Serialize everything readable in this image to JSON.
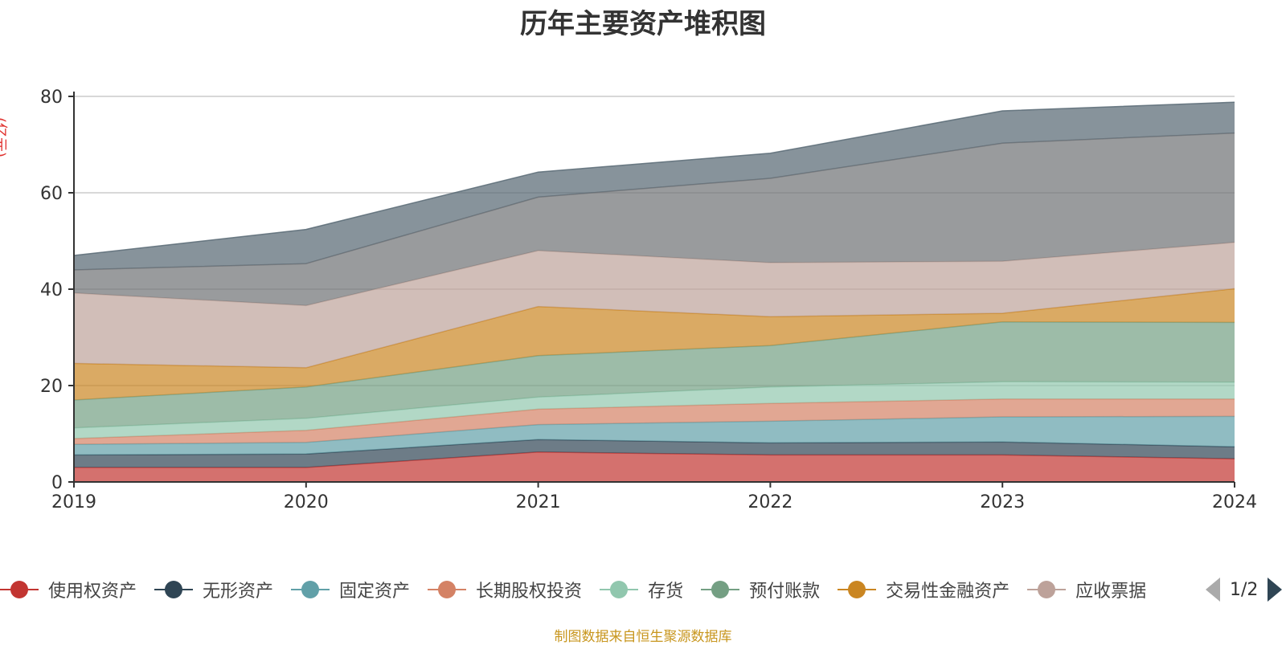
{
  "chart_data": {
    "type": "area",
    "stacked": true,
    "title": "历年主要资产堆积图",
    "unit_label": "(亿元)",
    "x": [
      "2019",
      "2020",
      "2021",
      "2022",
      "2023",
      "2024"
    ],
    "ylim": [
      0,
      80
    ],
    "yticks": [
      0,
      20,
      40,
      60,
      80
    ],
    "grid": true,
    "legend_position": "bottom",
    "series": [
      {
        "name": "使用权资产",
        "color": "#c23531",
        "values": [
          3.0,
          3.0,
          6.2,
          5.6,
          5.6,
          4.8
        ]
      },
      {
        "name": "无形资产",
        "color": "#2f4554",
        "values": [
          2.6,
          2.8,
          2.6,
          2.5,
          2.7,
          2.5
        ]
      },
      {
        "name": "固定资产",
        "color": "#61a0a8",
        "values": [
          2.2,
          2.4,
          3.1,
          4.5,
          5.2,
          6.3
        ]
      },
      {
        "name": "长期股权投资",
        "color": "#d48265",
        "values": [
          1.2,
          2.5,
          3.2,
          3.7,
          3.7,
          3.6
        ]
      },
      {
        "name": "存货",
        "color": "#91c7ae",
        "values": [
          2.2,
          2.5,
          2.5,
          3.4,
          3.6,
          3.5
        ]
      },
      {
        "name": "预付账款",
        "color": "#749f83",
        "values": [
          5.8,
          6.5,
          8.6,
          8.6,
          12.4,
          12.4
        ]
      },
      {
        "name": "交易性金融资产",
        "color": "#ca8622",
        "values": [
          7.6,
          4.0,
          10.2,
          6.0,
          1.8,
          7.0
        ]
      },
      {
        "name": "应收票据",
        "color": "#bda29a",
        "values": [
          14.6,
          12.9,
          11.6,
          11.2,
          10.8,
          9.6
        ]
      },
      {
        "values": [
          4.8,
          8.7,
          11.1,
          17.5,
          24.5,
          22.7
        ],
        "color": "#6e7074"
      },
      {
        "values": [
          3.0,
          7.1,
          5.2,
          5.2,
          6.7,
          6.4
        ],
        "color": "#546570"
      }
    ]
  },
  "legend": {
    "items": [
      {
        "name": "使用权资产",
        "color": "#c23531"
      },
      {
        "name": "无形资产",
        "color": "#2f4554"
      },
      {
        "name": "固定资产",
        "color": "#61a0a8"
      },
      {
        "name": "长期股权投资",
        "color": "#d48265"
      },
      {
        "name": "存货",
        "color": "#91c7ae"
      },
      {
        "name": "预付账款",
        "color": "#749f83"
      },
      {
        "name": "交易性金融资产",
        "color": "#ca8622"
      },
      {
        "name": "应收票据",
        "color": "#bda29a"
      }
    ],
    "page": "1/2"
  },
  "source_note": "制图数据来自恒生聚源数据库"
}
